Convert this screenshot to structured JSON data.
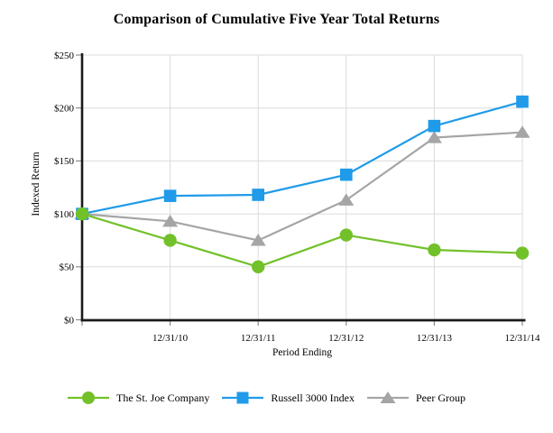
{
  "chart_data": {
    "type": "line",
    "title": "Comparison of Cumulative Five Year Total Returns",
    "xlabel": "Period Ending",
    "ylabel": "Indexed Return",
    "ylim": [
      0,
      250
    ],
    "y_ticks": [
      0,
      50,
      100,
      150,
      200,
      250
    ],
    "y_tick_labels": [
      "$0",
      "$50",
      "$100",
      "$150",
      "$200",
      "$250"
    ],
    "x_tick_labels": [
      "",
      "12/31/10",
      "12/31/11",
      "12/31/12",
      "12/31/13",
      "12/31/14"
    ],
    "grid": true,
    "legend_position": "bottom",
    "series": [
      {
        "name": "The St. Joe Company",
        "marker": "circle",
        "color": "#72C12A",
        "values": [
          100,
          75,
          50,
          80,
          66,
          63
        ]
      },
      {
        "name": "Russell 3000 Index",
        "marker": "square",
        "color": "#1F9BE9",
        "values": [
          100,
          117,
          118,
          137,
          183,
          206
        ]
      },
      {
        "name": "Peer Group",
        "marker": "triangle",
        "color": "#A5A5A5",
        "values": [
          100,
          93,
          75,
          113,
          172,
          177
        ]
      }
    ],
    "style": {
      "axis_color": "#1a1a1a",
      "gridline_color": "#dbdbdb",
      "tick_color": "#8c8c8c"
    }
  }
}
